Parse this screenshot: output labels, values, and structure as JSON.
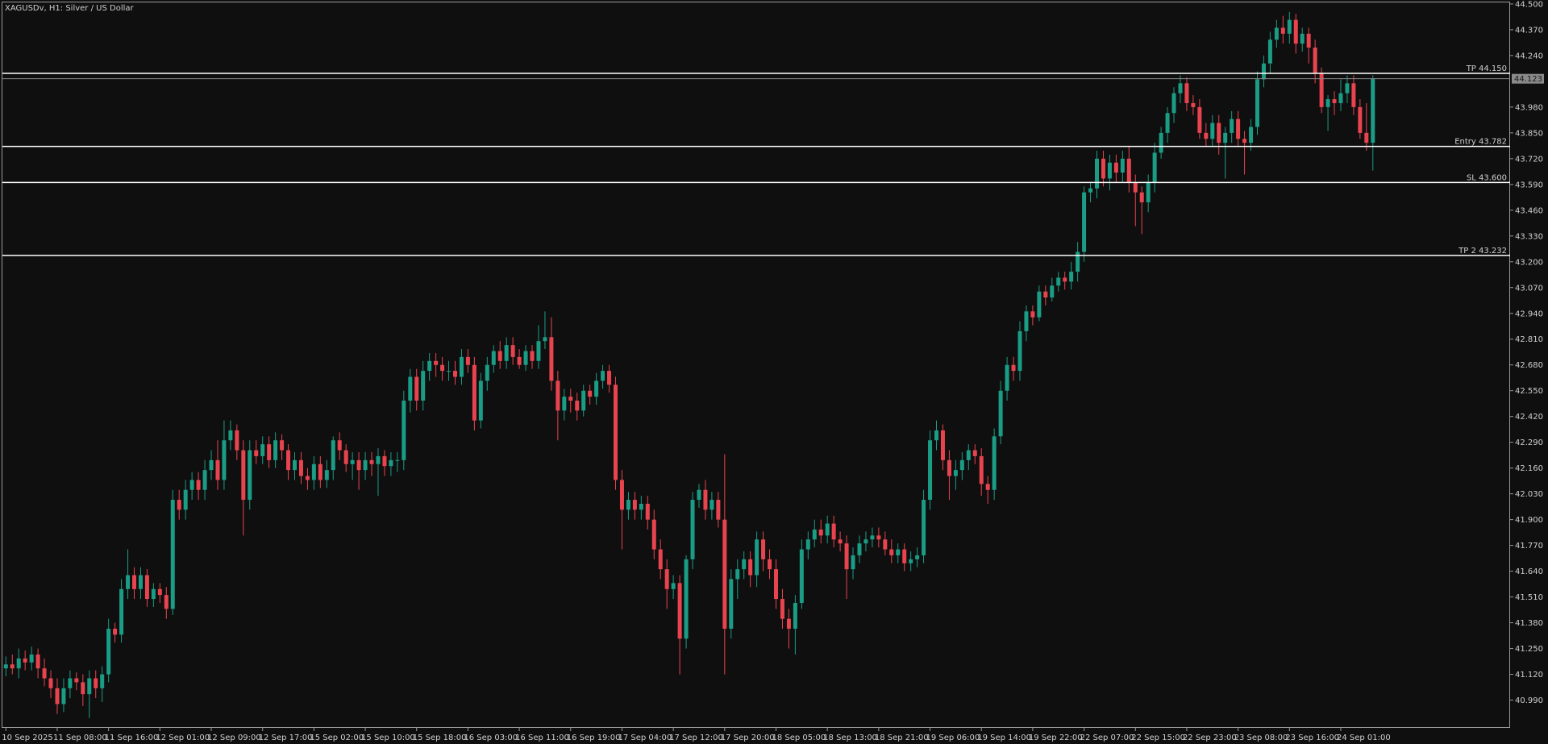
{
  "chart_data": {
    "type": "candlestick",
    "title": "XAGUSDv, H1:  Silver / US Dollar",
    "up_color": "#1b9c85",
    "down_color": "#e8444f",
    "background": "#0f0f0f",
    "grid": false,
    "ylim": [
      40.85,
      44.52
    ],
    "yticks": [
      {
        "value": 44.5,
        "label": "44.500"
      },
      {
        "value": 44.37,
        "label": "44.370"
      },
      {
        "value": 44.24,
        "label": "44.240"
      },
      {
        "value": 43.98,
        "label": "43.980"
      },
      {
        "value": 43.85,
        "label": "43.850"
      },
      {
        "value": 43.72,
        "label": "43.720"
      },
      {
        "value": 43.59,
        "label": "43.590"
      },
      {
        "value": 43.46,
        "label": "43.460"
      },
      {
        "value": 43.33,
        "label": "43.330"
      },
      {
        "value": 43.2,
        "label": "43.200"
      },
      {
        "value": 43.07,
        "label": "43.070"
      },
      {
        "value": 42.94,
        "label": "42.940"
      },
      {
        "value": 42.81,
        "label": "42.810"
      },
      {
        "value": 42.68,
        "label": "42.680"
      },
      {
        "value": 42.55,
        "label": "42.550"
      },
      {
        "value": 42.42,
        "label": "42.420"
      },
      {
        "value": 42.29,
        "label": "42.290"
      },
      {
        "value": 42.16,
        "label": "42.160"
      },
      {
        "value": 42.03,
        "label": "42.030"
      },
      {
        "value": 41.9,
        "label": "41.900"
      },
      {
        "value": 41.77,
        "label": "41.770"
      },
      {
        "value": 41.64,
        "label": "41.640"
      },
      {
        "value": 41.51,
        "label": "41.510"
      },
      {
        "value": 41.38,
        "label": "41.380"
      },
      {
        "value": 41.25,
        "label": "41.250"
      },
      {
        "value": 41.12,
        "label": "41.120"
      },
      {
        "value": 40.99,
        "label": "40.990"
      }
    ],
    "levels": [
      {
        "label": "TP 44.150",
        "value": 44.15,
        "color": "#ffffff"
      },
      {
        "label": "Entry 43.782",
        "value": 43.782,
        "color": "#ffffff"
      },
      {
        "label": "SL 43.600",
        "value": 43.6,
        "color": "#ffffff"
      },
      {
        "label": "TP 2 43.232",
        "value": 43.232,
        "color": "#ffffff"
      }
    ],
    "bid": {
      "value": 44.123,
      "label": "44.123",
      "color": "#8a8a8a"
    },
    "categories": [
      "10 Sep 2025",
      null,
      null,
      null,
      null,
      null,
      null,
      null,
      "11 Sep 08:00",
      null,
      null,
      null,
      null,
      null,
      null,
      null,
      "11 Sep 16:00",
      null,
      null,
      null,
      null,
      null,
      null,
      null,
      "12 Sep 01:00",
      null,
      null,
      null,
      null,
      null,
      null,
      null,
      "12 Sep 09:00",
      null,
      null,
      null,
      null,
      null,
      null,
      null,
      "12 Sep 17:00",
      null,
      null,
      null,
      null,
      null,
      null,
      null,
      "15 Sep 02:00",
      null,
      null,
      null,
      null,
      null,
      null,
      null,
      "15 Sep 10:00",
      null,
      null,
      null,
      null,
      null,
      null,
      null,
      "15 Sep 18:00",
      null,
      null,
      null,
      null,
      null,
      null,
      null,
      "16 Sep 03:00",
      null,
      null,
      null,
      null,
      null,
      null,
      null,
      "16 Sep 11:00",
      null,
      null,
      null,
      null,
      null,
      null,
      null,
      "16 Sep 19:00",
      null,
      null,
      null,
      null,
      null,
      null,
      null,
      "17 Sep 04:00",
      null,
      null,
      null,
      null,
      null,
      null,
      null,
      "17 Sep 12:00",
      null,
      null,
      null,
      null,
      null,
      null,
      null,
      "17 Sep 20:00",
      null,
      null,
      null,
      null,
      null,
      null,
      null,
      "18 Sep 05:00",
      null,
      null,
      null,
      null,
      null,
      null,
      null,
      "18 Sep 13:00",
      null,
      null,
      null,
      null,
      null,
      null,
      null,
      "18 Sep 21:00",
      null,
      null,
      null,
      null,
      null,
      null,
      null,
      "19 Sep 06:00",
      null,
      null,
      null,
      null,
      null,
      null,
      null,
      "19 Sep 14:00",
      null,
      null,
      null,
      null,
      null,
      null,
      null,
      "19 Sep 22:00",
      null,
      null,
      null,
      null,
      null,
      null,
      null,
      "22 Sep 07:00",
      null,
      null,
      null,
      null,
      null,
      null,
      null,
      "22 Sep 15:00",
      null,
      null,
      null,
      null,
      null,
      null,
      null,
      "22 Sep 23:00",
      null,
      null,
      null,
      null,
      null,
      null,
      null,
      "23 Sep 08:00",
      null,
      null,
      null,
      null,
      null,
      null,
      null,
      "23 Sep 16:00",
      null,
      null,
      null,
      null,
      null,
      null,
      null,
      "24 Sep 01:00",
      null,
      null,
      null,
      null,
      null
    ],
    "open": [
      41.15,
      41.17,
      41.15,
      41.2,
      41.18,
      41.22,
      41.15,
      41.1,
      41.05,
      40.97,
      41.05,
      41.1,
      41.08,
      41.02,
      41.1,
      41.05,
      41.12,
      41.35,
      41.32,
      41.55,
      41.62,
      41.55,
      41.62,
      41.5,
      41.55,
      41.52,
      41.45,
      42.0,
      41.95,
      42.05,
      42.1,
      42.05,
      42.15,
      42.2,
      42.1,
      42.3,
      42.35,
      42.25,
      42.0,
      42.25,
      42.22,
      42.28,
      42.2,
      42.3,
      42.25,
      42.15,
      42.2,
      42.12,
      42.1,
      42.18,
      42.1,
      42.15,
      42.3,
      42.25,
      42.18,
      42.2,
      42.15,
      42.2,
      42.18,
      42.22,
      42.17,
      42.2,
      42.2,
      42.5,
      42.62,
      42.5,
      42.65,
      42.7,
      42.68,
      42.65,
      42.65,
      42.62,
      42.72,
      42.68,
      42.4,
      42.6,
      42.68,
      42.75,
      42.7,
      42.78,
      42.72,
      42.68,
      42.75,
      42.7,
      42.8,
      42.82,
      42.6,
      42.45,
      42.52,
      42.5,
      42.45,
      42.55,
      42.52,
      42.6,
      42.65,
      42.58,
      42.1,
      41.95,
      42.0,
      41.95,
      41.98,
      41.9,
      41.75,
      41.65,
      41.55,
      41.58,
      41.3,
      41.7,
      42.0,
      42.05,
      41.95,
      42.0,
      41.9,
      41.35,
      41.6,
      41.65,
      41.7,
      41.62,
      41.8,
      41.7,
      41.65,
      41.5,
      41.4,
      41.35,
      41.48,
      41.75,
      41.8,
      41.85,
      41.82,
      41.88,
      41.8,
      41.78,
      41.65,
      41.72,
      41.78,
      41.8,
      41.82,
      41.8,
      41.75,
      41.72,
      41.75,
      41.68,
      41.7,
      41.72,
      42.0,
      42.3,
      42.35,
      42.2,
      42.12,
      42.15,
      42.2,
      42.25,
      42.22,
      42.08,
      42.05,
      42.32,
      42.55,
      42.68,
      42.65,
      42.85,
      42.95,
      42.92,
      43.05,
      43.02,
      43.08,
      43.12,
      43.1,
      43.15,
      43.25,
      43.55,
      43.57,
      43.72,
      43.62,
      43.7,
      43.65,
      43.72,
      43.6,
      43.55,
      43.5,
      43.6,
      43.75,
      43.85,
      43.95,
      44.05,
      44.1,
      44.0,
      43.98,
      43.85,
      43.82,
      43.9,
      43.8,
      43.85,
      43.92,
      43.82,
      43.8,
      43.88,
      44.12,
      44.2,
      44.32,
      44.38,
      44.35,
      44.42,
      44.3,
      44.35,
      44.28,
      44.15,
      43.98,
      44.02,
      44.0,
      44.05,
      44.1,
      43.98,
      43.85,
      43.8
    ],
    "high": [
      41.21,
      41.22,
      41.25,
      41.24,
      41.26,
      41.25,
      41.2,
      41.14,
      41.1,
      41.1,
      41.14,
      41.13,
      41.12,
      41.14,
      41.14,
      41.16,
      41.4,
      41.38,
      41.6,
      41.75,
      41.66,
      41.66,
      41.65,
      41.58,
      41.58,
      41.56,
      42.05,
      42.05,
      42.1,
      42.14,
      42.14,
      42.2,
      42.25,
      42.3,
      42.4,
      42.4,
      42.38,
      42.3,
      42.3,
      42.3,
      42.32,
      42.32,
      42.34,
      42.33,
      42.28,
      42.24,
      42.24,
      42.16,
      42.22,
      42.22,
      42.2,
      42.32,
      42.34,
      42.28,
      42.24,
      42.24,
      42.24,
      42.24,
      42.26,
      42.25,
      42.24,
      42.24,
      42.55,
      42.66,
      42.66,
      42.7,
      42.74,
      42.74,
      42.72,
      42.7,
      42.7,
      42.76,
      42.76,
      42.72,
      42.64,
      42.72,
      42.78,
      42.8,
      42.82,
      42.82,
      42.76,
      42.78,
      42.78,
      42.88,
      42.95,
      42.92,
      42.65,
      42.56,
      42.56,
      42.54,
      42.58,
      42.58,
      42.64,
      42.68,
      42.68,
      42.62,
      42.15,
      42.04,
      42.04,
      42.02,
      42.02,
      41.95,
      41.8,
      41.7,
      41.62,
      41.62,
      41.72,
      42.04,
      42.08,
      42.1,
      42.04,
      42.04,
      42.23,
      41.65,
      41.7,
      41.74,
      41.74,
      41.84,
      41.84,
      41.75,
      41.7,
      41.55,
      41.45,
      41.52,
      41.8,
      41.84,
      41.9,
      41.9,
      41.92,
      41.92,
      41.84,
      41.82,
      41.76,
      41.82,
      41.84,
      41.86,
      41.86,
      41.84,
      41.8,
      41.78,
      41.78,
      41.74,
      41.76,
      42.05,
      42.35,
      42.4,
      42.38,
      42.25,
      42.2,
      42.24,
      42.28,
      42.28,
      42.26,
      42.12,
      42.36,
      42.6,
      42.72,
      42.72,
      42.9,
      42.98,
      42.98,
      43.08,
      43.08,
      43.12,
      43.15,
      43.15,
      43.2,
      43.3,
      43.58,
      43.6,
      43.76,
      43.76,
      43.74,
      43.74,
      43.76,
      43.78,
      43.64,
      43.58,
      43.64,
      43.8,
      43.88,
      43.98,
      44.08,
      44.14,
      44.13,
      44.04,
      44.02,
      43.9,
      43.94,
      43.94,
      43.88,
      43.96,
      43.96,
      43.86,
      43.92,
      44.16,
      44.24,
      44.36,
      44.42,
      44.44,
      44.46,
      44.45,
      44.38,
      44.38,
      44.32,
      44.18,
      44.04,
      44.06,
      44.12,
      44.14,
      44.14,
      44.02,
      44.0,
      44.14
    ],
    "low": [
      41.11,
      41.12,
      41.1,
      41.14,
      41.14,
      41.1,
      41.06,
      41.0,
      40.92,
      40.93,
      41.0,
      41.04,
      40.96,
      40.9,
      41.0,
      40.98,
      41.08,
      41.28,
      41.28,
      41.5,
      41.5,
      41.5,
      41.46,
      41.46,
      41.48,
      41.4,
      41.42,
      41.9,
      41.9,
      42.0,
      42.0,
      42.0,
      42.1,
      42.05,
      42.05,
      42.25,
      42.2,
      41.82,
      41.95,
      42.18,
      42.18,
      42.16,
      42.16,
      42.2,
      42.1,
      42.1,
      42.08,
      42.05,
      42.05,
      42.06,
      42.06,
      42.1,
      42.2,
      42.14,
      42.1,
      42.05,
      42.1,
      42.12,
      42.02,
      42.12,
      42.12,
      42.14,
      42.15,
      42.44,
      42.45,
      42.45,
      42.6,
      42.62,
      42.6,
      42.6,
      42.58,
      42.58,
      42.64,
      42.35,
      42.36,
      42.55,
      42.64,
      42.66,
      42.66,
      42.68,
      42.66,
      42.65,
      42.66,
      42.66,
      42.76,
      42.55,
      42.3,
      42.4,
      42.44,
      42.4,
      42.42,
      42.48,
      42.48,
      42.56,
      42.54,
      42.05,
      41.75,
      41.9,
      41.9,
      41.9,
      41.85,
      41.7,
      41.6,
      41.45,
      41.5,
      41.12,
      41.25,
      41.65,
      41.96,
      41.9,
      41.9,
      41.86,
      41.12,
      41.3,
      41.5,
      41.6,
      41.56,
      41.56,
      41.64,
      41.6,
      41.45,
      41.35,
      41.25,
      41.22,
      41.45,
      41.7,
      41.76,
      41.78,
      41.78,
      41.76,
      41.74,
      41.5,
      41.6,
      41.68,
      41.74,
      41.76,
      41.76,
      41.72,
      41.68,
      41.68,
      41.64,
      41.64,
      41.66,
      41.68,
      41.95,
      42.25,
      42.15,
      42.0,
      42.05,
      42.1,
      42.15,
      42.18,
      42.02,
      41.98,
      42.0,
      42.28,
      42.5,
      42.6,
      42.6,
      42.8,
      42.88,
      42.9,
      42.98,
      43.0,
      43.05,
      43.06,
      43.06,
      43.1,
      43.2,
      43.5,
      43.52,
      43.58,
      43.56,
      43.6,
      43.6,
      43.55,
      43.38,
      43.34,
      43.45,
      43.55,
      43.72,
      43.8,
      43.9,
      44.0,
      43.96,
      43.94,
      43.82,
      43.78,
      43.78,
      43.74,
      43.62,
      43.8,
      43.78,
      43.64,
      43.76,
      43.84,
      44.08,
      44.15,
      44.28,
      44.3,
      44.3,
      44.25,
      44.26,
      44.2,
      44.1,
      43.95,
      43.86,
      43.94,
      43.96,
      44.0,
      43.94,
      43.82,
      43.76,
      43.66
    ],
    "close": [
      41.17,
      41.15,
      41.2,
      41.18,
      41.22,
      41.15,
      41.1,
      41.05,
      40.97,
      41.05,
      41.1,
      41.08,
      41.02,
      41.1,
      41.05,
      41.12,
      41.35,
      41.32,
      41.55,
      41.62,
      41.55,
      41.62,
      41.5,
      41.55,
      41.52,
      41.45,
      42.0,
      41.95,
      42.05,
      42.1,
      42.05,
      42.15,
      42.2,
      42.1,
      42.3,
      42.35,
      42.25,
      42.0,
      42.25,
      42.22,
      42.28,
      42.2,
      42.3,
      42.25,
      42.15,
      42.2,
      42.12,
      42.1,
      42.18,
      42.1,
      42.15,
      42.3,
      42.25,
      42.18,
      42.2,
      42.15,
      42.2,
      42.18,
      42.22,
      42.17,
      42.2,
      42.2,
      42.5,
      42.62,
      42.5,
      42.65,
      42.7,
      42.68,
      42.65,
      42.65,
      42.62,
      42.72,
      42.68,
      42.4,
      42.6,
      42.68,
      42.75,
      42.7,
      42.78,
      42.72,
      42.68,
      42.75,
      42.7,
      42.8,
      42.82,
      42.6,
      42.45,
      42.52,
      42.5,
      42.45,
      42.55,
      42.52,
      42.6,
      42.65,
      42.58,
      42.1,
      41.95,
      42.0,
      41.95,
      41.98,
      41.9,
      41.75,
      41.65,
      41.55,
      41.58,
      41.3,
      41.7,
      42.0,
      42.05,
      41.95,
      42.0,
      41.9,
      41.35,
      41.6,
      41.65,
      41.7,
      41.62,
      41.8,
      41.7,
      41.65,
      41.5,
      41.4,
      41.35,
      41.48,
      41.75,
      41.8,
      41.85,
      41.82,
      41.88,
      41.8,
      41.78,
      41.65,
      41.72,
      41.78,
      41.8,
      41.82,
      41.8,
      41.75,
      41.72,
      41.75,
      41.68,
      41.7,
      41.72,
      42.0,
      42.3,
      42.35,
      42.2,
      42.12,
      42.15,
      42.2,
      42.25,
      42.22,
      42.08,
      42.05,
      42.32,
      42.55,
      42.68,
      42.65,
      42.85,
      42.95,
      42.92,
      43.05,
      43.02,
      43.08,
      43.12,
      43.1,
      43.15,
      43.25,
      43.55,
      43.57,
      43.72,
      43.62,
      43.7,
      43.65,
      43.72,
      43.6,
      43.55,
      43.5,
      43.6,
      43.75,
      43.85,
      43.95,
      44.05,
      44.1,
      44.0,
      43.98,
      43.85,
      43.82,
      43.9,
      43.8,
      43.85,
      43.92,
      43.82,
      43.8,
      43.88,
      44.12,
      44.2,
      44.32,
      44.38,
      44.35,
      44.42,
      44.3,
      44.35,
      44.28,
      44.15,
      43.98,
      44.02,
      44.0,
      44.05,
      44.1,
      43.98,
      43.85,
      43.8,
      44.123
    ]
  }
}
